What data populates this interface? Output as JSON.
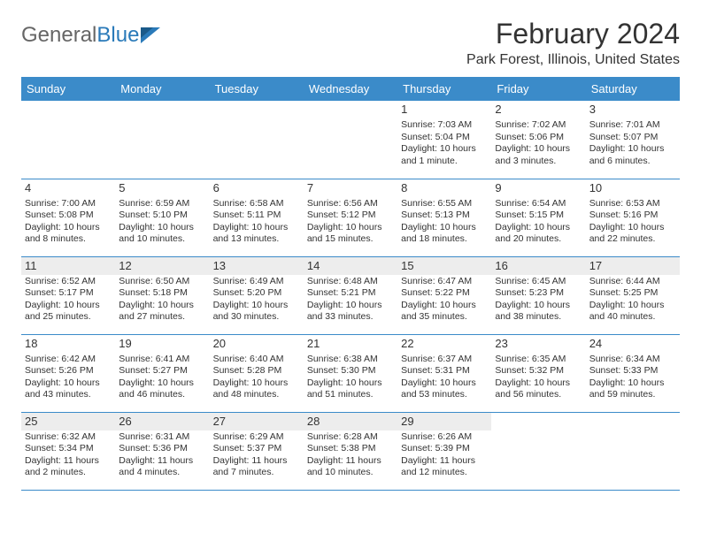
{
  "brand": {
    "part1": "General",
    "part2": "Blue"
  },
  "title": "February 2024",
  "location": "Park Forest, Illinois, United States",
  "colors": {
    "header_bg": "#3b8bc9",
    "header_text": "#ffffff",
    "border": "#3b8bc9",
    "shade": "#ededed",
    "body_text": "#333333",
    "brand_grey": "#666666",
    "brand_blue": "#2a7ab9"
  },
  "day_headers": [
    "Sunday",
    "Monday",
    "Tuesday",
    "Wednesday",
    "Thursday",
    "Friday",
    "Saturday"
  ],
  "weeks": [
    [
      null,
      null,
      null,
      null,
      {
        "n": "1",
        "sr": "Sunrise: 7:03 AM",
        "ss": "Sunset: 5:04 PM",
        "dl": "Daylight: 10 hours and 1 minute."
      },
      {
        "n": "2",
        "sr": "Sunrise: 7:02 AM",
        "ss": "Sunset: 5:06 PM",
        "dl": "Daylight: 10 hours and 3 minutes."
      },
      {
        "n": "3",
        "sr": "Sunrise: 7:01 AM",
        "ss": "Sunset: 5:07 PM",
        "dl": "Daylight: 10 hours and 6 minutes."
      }
    ],
    [
      {
        "n": "4",
        "sr": "Sunrise: 7:00 AM",
        "ss": "Sunset: 5:08 PM",
        "dl": "Daylight: 10 hours and 8 minutes."
      },
      {
        "n": "5",
        "sr": "Sunrise: 6:59 AM",
        "ss": "Sunset: 5:10 PM",
        "dl": "Daylight: 10 hours and 10 minutes."
      },
      {
        "n": "6",
        "sr": "Sunrise: 6:58 AM",
        "ss": "Sunset: 5:11 PM",
        "dl": "Daylight: 10 hours and 13 minutes."
      },
      {
        "n": "7",
        "sr": "Sunrise: 6:56 AM",
        "ss": "Sunset: 5:12 PM",
        "dl": "Daylight: 10 hours and 15 minutes."
      },
      {
        "n": "8",
        "sr": "Sunrise: 6:55 AM",
        "ss": "Sunset: 5:13 PM",
        "dl": "Daylight: 10 hours and 18 minutes."
      },
      {
        "n": "9",
        "sr": "Sunrise: 6:54 AM",
        "ss": "Sunset: 5:15 PM",
        "dl": "Daylight: 10 hours and 20 minutes."
      },
      {
        "n": "10",
        "sr": "Sunrise: 6:53 AM",
        "ss": "Sunset: 5:16 PM",
        "dl": "Daylight: 10 hours and 22 minutes."
      }
    ],
    [
      {
        "n": "11",
        "sr": "Sunrise: 6:52 AM",
        "ss": "Sunset: 5:17 PM",
        "dl": "Daylight: 10 hours and 25 minutes."
      },
      {
        "n": "12",
        "sr": "Sunrise: 6:50 AM",
        "ss": "Sunset: 5:18 PM",
        "dl": "Daylight: 10 hours and 27 minutes."
      },
      {
        "n": "13",
        "sr": "Sunrise: 6:49 AM",
        "ss": "Sunset: 5:20 PM",
        "dl": "Daylight: 10 hours and 30 minutes."
      },
      {
        "n": "14",
        "sr": "Sunrise: 6:48 AM",
        "ss": "Sunset: 5:21 PM",
        "dl": "Daylight: 10 hours and 33 minutes."
      },
      {
        "n": "15",
        "sr": "Sunrise: 6:47 AM",
        "ss": "Sunset: 5:22 PM",
        "dl": "Daylight: 10 hours and 35 minutes."
      },
      {
        "n": "16",
        "sr": "Sunrise: 6:45 AM",
        "ss": "Sunset: 5:23 PM",
        "dl": "Daylight: 10 hours and 38 minutes."
      },
      {
        "n": "17",
        "sr": "Sunrise: 6:44 AM",
        "ss": "Sunset: 5:25 PM",
        "dl": "Daylight: 10 hours and 40 minutes."
      }
    ],
    [
      {
        "n": "18",
        "sr": "Sunrise: 6:42 AM",
        "ss": "Sunset: 5:26 PM",
        "dl": "Daylight: 10 hours and 43 minutes."
      },
      {
        "n": "19",
        "sr": "Sunrise: 6:41 AM",
        "ss": "Sunset: 5:27 PM",
        "dl": "Daylight: 10 hours and 46 minutes."
      },
      {
        "n": "20",
        "sr": "Sunrise: 6:40 AM",
        "ss": "Sunset: 5:28 PM",
        "dl": "Daylight: 10 hours and 48 minutes."
      },
      {
        "n": "21",
        "sr": "Sunrise: 6:38 AM",
        "ss": "Sunset: 5:30 PM",
        "dl": "Daylight: 10 hours and 51 minutes."
      },
      {
        "n": "22",
        "sr": "Sunrise: 6:37 AM",
        "ss": "Sunset: 5:31 PM",
        "dl": "Daylight: 10 hours and 53 minutes."
      },
      {
        "n": "23",
        "sr": "Sunrise: 6:35 AM",
        "ss": "Sunset: 5:32 PM",
        "dl": "Daylight: 10 hours and 56 minutes."
      },
      {
        "n": "24",
        "sr": "Sunrise: 6:34 AM",
        "ss": "Sunset: 5:33 PM",
        "dl": "Daylight: 10 hours and 59 minutes."
      }
    ],
    [
      {
        "n": "25",
        "sr": "Sunrise: 6:32 AM",
        "ss": "Sunset: 5:34 PM",
        "dl": "Daylight: 11 hours and 2 minutes."
      },
      {
        "n": "26",
        "sr": "Sunrise: 6:31 AM",
        "ss": "Sunset: 5:36 PM",
        "dl": "Daylight: 11 hours and 4 minutes."
      },
      {
        "n": "27",
        "sr": "Sunrise: 6:29 AM",
        "ss": "Sunset: 5:37 PM",
        "dl": "Daylight: 11 hours and 7 minutes."
      },
      {
        "n": "28",
        "sr": "Sunrise: 6:28 AM",
        "ss": "Sunset: 5:38 PM",
        "dl": "Daylight: 11 hours and 10 minutes."
      },
      {
        "n": "29",
        "sr": "Sunrise: 6:26 AM",
        "ss": "Sunset: 5:39 PM",
        "dl": "Daylight: 11 hours and 12 minutes."
      },
      null,
      null
    ]
  ],
  "shaded_rows": [
    2,
    4
  ]
}
